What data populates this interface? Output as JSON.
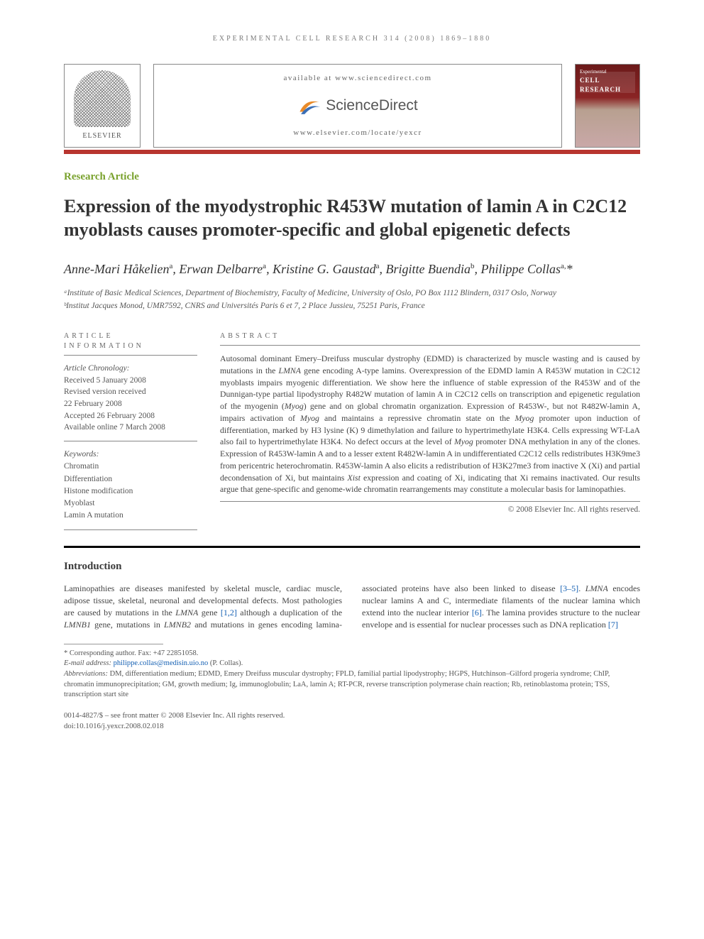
{
  "running_head": "EXPERIMENTAL CELL RESEARCH 314 (2008) 1869–1880",
  "banner": {
    "elsevier_label": "ELSEVIER",
    "available_at": "available at www.sciencedirect.com",
    "sd_brand": "ScienceDirect",
    "locate": "www.elsevier.com/locate/yexcr",
    "journal_thumb_line1": "Experimental",
    "journal_thumb_line2": "CELL RESEARCH"
  },
  "article_type": "Research Article",
  "title": "Expression of the myodystrophic R453W mutation of lamin A in C2C12 myoblasts causes promoter-specific and global epigenetic defects",
  "authors_html": "Anne-Mari Håkelien<sup>a</sup>, Erwan Delbarre<sup>a</sup>, Kristine G. Gaustad<sup>a</sup>, Brigitte Buendia<sup>b</sup>, Philippe Collas<sup>a,</sup>*",
  "affiliations": [
    "ᵃInstitute of Basic Medical Sciences, Department of Biochemistry, Faculty of Medicine, University of Oslo, PO Box 1112 Blindern, 0317 Oslo, Norway",
    "ᵇInstitut Jacques Monod, UMR7592, CNRS and Universités Paris 6 et 7, 2 Place Jussieu, 75251 Paris, France"
  ],
  "info": {
    "section_label": "ARTICLE INFORMATION",
    "chronology_label": "Article Chronology:",
    "chronology": [
      "Received 5 January 2008",
      "Revised version received",
      "22 February 2008",
      "Accepted 26 February 2008",
      "Available online 7 March 2008"
    ],
    "keywords_label": "Keywords:",
    "keywords": [
      "Chromatin",
      "Differentiation",
      "Histone modification",
      "Myoblast",
      "Lamin A mutation"
    ]
  },
  "abstract": {
    "section_label": "ABSTRACT",
    "text": "Autosomal dominant Emery–Dreifuss muscular dystrophy (EDMD) is characterized by muscle wasting and is caused by mutations in the LMNA gene encoding A-type lamins. Overexpression of the EDMD lamin A R453W mutation in C2C12 myoblasts impairs myogenic differentiation. We show here the influence of stable expression of the R453W and of the Dunnigan-type partial lipodystrophy R482W mutation of lamin A in C2C12 cells on transcription and epigenetic regulation of the myogenin (Myog) gene and on global chromatin organization. Expression of R453W-, but not R482W-lamin A, impairs activation of Myog and maintains a repressive chromatin state on the Myog promoter upon induction of differentiation, marked by H3 lysine (K) 9 dimethylation and failure to hypertrimethylate H3K4. Cells expressing WT-LaA also fail to hypertrimethylate H3K4. No defect occurs at the level of Myog promoter DNA methylation in any of the clones. Expression of R453W-lamin A and to a lesser extent R482W-lamin A in undifferentiated C2C12 cells redistributes H3K9me3 from pericentric heterochromatin. R453W-lamin A also elicits a redistribution of H3K27me3 from inactive X (Xi) and partial decondensation of Xi, but maintains Xist expression and coating of Xi, indicating that Xi remains inactivated. Our results argue that gene-specific and genome-wide chromatin rearrangements may constitute a molecular basis for laminopathies.",
    "copyright": "© 2008 Elsevier Inc. All rights reserved."
  },
  "body": {
    "intro_heading": "Introduction",
    "intro_para": "Laminopathies are diseases manifested by skeletal muscle, cardiac muscle, adipose tissue, skeletal, neuronal and developmental defects. Most pathologies are caused by mutations in the LMNA gene [1,2] although a duplication of the LMNB1 gene, mutations in LMNB2 and mutations in genes encoding lamina-associated proteins have also been linked to disease [3–5]. LMNA encodes nuclear lamins A and C, intermediate filaments of the nuclear lamina which extend into the nuclear interior [6]. The lamina provides structure to the nuclear envelope and is essential for nuclear processes such as DNA replication [7]"
  },
  "footnotes": {
    "corresponding": "* Corresponding author. Fax: +47 22851058.",
    "email_label": "E-mail address:",
    "email": "philippe.collas@medisin.uio.no",
    "email_attrib": "(P. Collas).",
    "abbrev_label": "Abbreviations:",
    "abbrev_text": "DM, differentiation medium; EDMD, Emery Dreifuss muscular dystrophy; FPLD, familial partial lipodystrophy; HGPS, Hutchinson–Gilford progeria syndrome; ChIP, chromatin immunoprecipitation; GM, growth medium; Ig, immunoglobulin; LaA, lamin A; RT-PCR, reverse transcription polymerase chain reaction; Rb, retinoblastoma protein; TSS, transcription start site"
  },
  "bottom": {
    "front_matter": "0014-4827/$ – see front matter © 2008 Elsevier Inc. All rights reserved.",
    "doi": "doi:10.1016/j.yexcr.2008.02.018"
  },
  "colors": {
    "green": "#7aa22e",
    "red_rule": "#b8352f",
    "link": "#1560b3",
    "sd_orange": "#e98b2a",
    "sd_blue": "#3b6fb6"
  }
}
